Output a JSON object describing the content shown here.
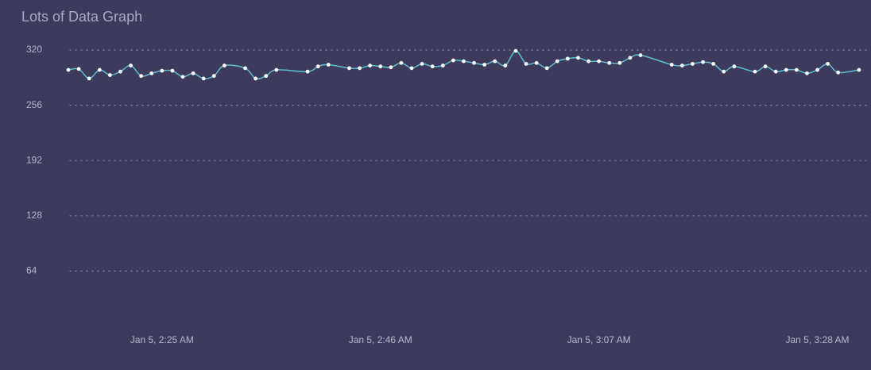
{
  "chart_data": {
    "type": "line",
    "title": "Lots of Data Graph",
    "color": "#5bbfd0",
    "grid": true,
    "x": [
      "Jan 5, 2:16 AM",
      "Jan 5, 2:17 AM",
      "Jan 5, 2:18 AM",
      "Jan 5, 2:19 AM",
      "Jan 5, 2:20 AM",
      "Jan 5, 2:21 AM",
      "Jan 5, 2:22 AM",
      "Jan 5, 2:23 AM",
      "Jan 5, 2:24 AM",
      "Jan 5, 2:25 AM",
      "Jan 5, 2:26 AM",
      "Jan 5, 2:27 AM",
      "Jan 5, 2:28 AM",
      "Jan 5, 2:29 AM",
      "Jan 5, 2:30 AM",
      "Jan 5, 2:31 AM",
      "Jan 5, 2:33 AM",
      "Jan 5, 2:34 AM",
      "Jan 5, 2:35 AM",
      "Jan 5, 2:36 AM",
      "Jan 5, 2:39 AM",
      "Jan 5, 2:40 AM",
      "Jan 5, 2:41 AM",
      "Jan 5, 2:43 AM",
      "Jan 5, 2:44 AM",
      "Jan 5, 2:45 AM",
      "Jan 5, 2:46 AM",
      "Jan 5, 2:47 AM",
      "Jan 5, 2:48 AM",
      "Jan 5, 2:49 AM",
      "Jan 5, 2:50 AM",
      "Jan 5, 2:51 AM",
      "Jan 5, 2:52 AM",
      "Jan 5, 2:53 AM",
      "Jan 5, 2:54 AM",
      "Jan 5, 2:55 AM",
      "Jan 5, 2:56 AM",
      "Jan 5, 2:57 AM",
      "Jan 5, 2:58 AM",
      "Jan 5, 2:59 AM",
      "Jan 5, 3:00 AM",
      "Jan 5, 3:01 AM",
      "Jan 5, 3:02 AM",
      "Jan 5, 3:03 AM",
      "Jan 5, 3:04 AM",
      "Jan 5, 3:05 AM",
      "Jan 5, 3:06 AM",
      "Jan 5, 3:07 AM",
      "Jan 5, 3:08 AM",
      "Jan 5, 3:09 AM",
      "Jan 5, 3:10 AM",
      "Jan 5, 3:11 AM",
      "Jan 5, 3:14 AM",
      "Jan 5, 3:15 AM",
      "Jan 5, 3:16 AM",
      "Jan 5, 3:17 AM",
      "Jan 5, 3:18 AM",
      "Jan 5, 3:19 AM",
      "Jan 5, 3:20 AM",
      "Jan 5, 3:22 AM",
      "Jan 5, 3:23 AM",
      "Jan 5, 3:24 AM",
      "Jan 5, 3:25 AM",
      "Jan 5, 3:26 AM",
      "Jan 5, 3:27 AM",
      "Jan 5, 3:28 AM",
      "Jan 5, 3:29 AM",
      "Jan 5, 3:30 AM",
      "Jan 5, 3:32 AM"
    ],
    "values": [
      297,
      298,
      287,
      297,
      291,
      295,
      302,
      290,
      293,
      296,
      296,
      289,
      293,
      287,
      290,
      302,
      299,
      287,
      290,
      297,
      295,
      301,
      303,
      299,
      299,
      302,
      301,
      300,
      305,
      299,
      304,
      301,
      302,
      308,
      307,
      305,
      303,
      307,
      302,
      319,
      304,
      305,
      299,
      307,
      310,
      311,
      307,
      307,
      305,
      305,
      311,
      314,
      303,
      302,
      304,
      306,
      304,
      295,
      301,
      295,
      301,
      295,
      297,
      297,
      293,
      297,
      304,
      294,
      297
    ],
    "xlim": [
      "Jan 5, 2:16 AM",
      "Jan 5, 3:33 AM"
    ],
    "xticks": [
      "Jan 5, 2:25 AM",
      "Jan 5, 2:46 AM",
      "Jan 5, 3:07 AM",
      "Jan 5, 3:28 AM"
    ],
    "ylim": [
      0,
      320
    ],
    "yticks": [
      64,
      128,
      192,
      256,
      320
    ]
  }
}
